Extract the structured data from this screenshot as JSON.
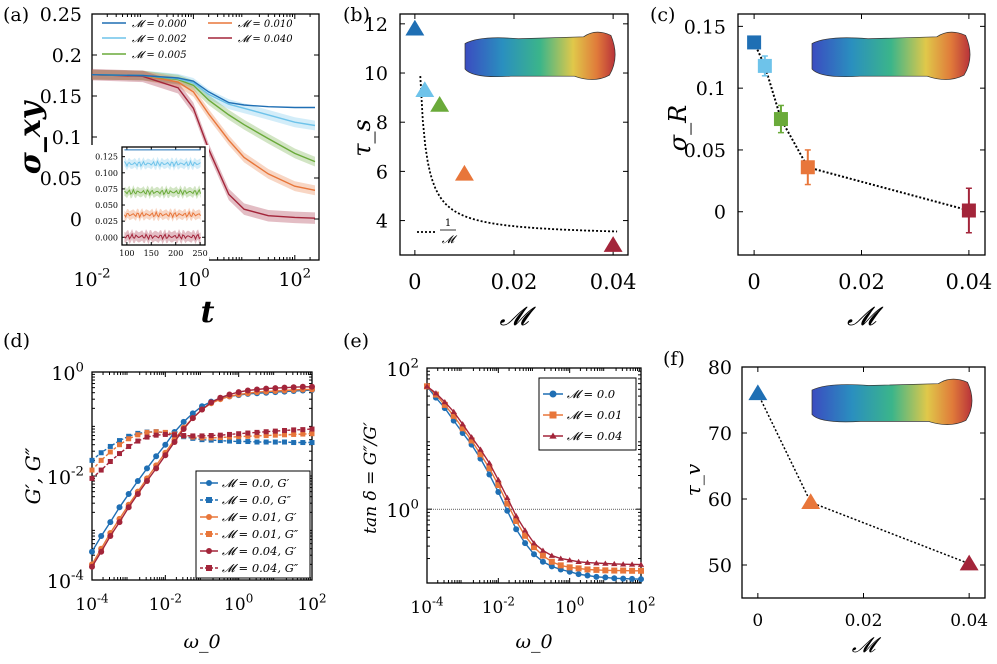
{
  "chart_data": [
    {
      "panel": "(a)",
      "type": "line",
      "xscale": "log",
      "xlim": [
        0.01,
        300
      ],
      "ylim": [
        -0.05,
        0.25
      ],
      "x_ticks": [
        "10^{-2}",
        "10^{0}",
        "10^{2}"
      ],
      "y_ticks": [
        "0.25",
        "0.2",
        "0.15",
        "0.1",
        "0.05",
        "0"
      ],
      "xlabel": "t",
      "ylabel": "σ_xy",
      "legend_position": "top",
      "series": [
        {
          "name": "𝓜 = 0.000",
          "color": "#1f6fb4",
          "x": [
            0.01,
            0.1,
            0.5,
            1,
            2,
            5,
            10,
            30,
            100,
            250
          ],
          "y": [
            0.176,
            0.175,
            0.172,
            0.168,
            0.155,
            0.142,
            0.139,
            0.137,
            0.136,
            0.136
          ]
        },
        {
          "name": "𝓜 = 0.002",
          "color": "#6ec3ea",
          "x": [
            0.01,
            0.1,
            0.5,
            1,
            2,
            5,
            10,
            30,
            100,
            250
          ],
          "y": [
            0.176,
            0.175,
            0.171,
            0.166,
            0.152,
            0.14,
            0.135,
            0.127,
            0.118,
            0.114
          ]
        },
        {
          "name": "𝓜 = 0.005",
          "color": "#6aaa3a",
          "x": [
            0.01,
            0.1,
            0.5,
            1,
            2,
            5,
            10,
            30,
            100,
            250
          ],
          "y": [
            0.176,
            0.175,
            0.17,
            0.163,
            0.145,
            0.127,
            0.115,
            0.098,
            0.08,
            0.07
          ]
        },
        {
          "name": "𝓜 = 0.010",
          "color": "#e8763a",
          "x": [
            0.01,
            0.1,
            0.5,
            1,
            2,
            5,
            10,
            30,
            100,
            250
          ],
          "y": [
            0.176,
            0.175,
            0.167,
            0.155,
            0.128,
            0.096,
            0.075,
            0.055,
            0.04,
            0.035
          ]
        },
        {
          "name": "𝓜 = 0.040",
          "color": "#a3253a",
          "x": [
            0.01,
            0.1,
            0.5,
            1,
            2,
            5,
            10,
            30,
            100,
            250
          ],
          "y": [
            0.176,
            0.174,
            0.16,
            0.135,
            0.085,
            0.03,
            0.012,
            0.004,
            0.002,
            0.001
          ]
        }
      ],
      "inset": {
        "x_ticks": [
          "100",
          "150",
          "200",
          "250"
        ],
        "y_ticks": [
          "0.125",
          "0.100",
          "0.075",
          "0.050",
          "0.025",
          "0.000"
        ],
        "xlim": [
          90,
          260
        ],
        "ylim": [
          -0.012,
          0.14
        ]
      }
    },
    {
      "panel": "(b)",
      "type": "scatter",
      "xlabel": "𝓜",
      "ylabel": "τ_s",
      "xlim": [
        -0.003,
        0.043
      ],
      "ylim": [
        2.6,
        12.4
      ],
      "x_ticks": [
        "0",
        "0.02",
        "0.04"
      ],
      "y_ticks": [
        "4",
        "6",
        "8",
        "10",
        "12"
      ],
      "fit_label_num": "1",
      "fit_label_den": "𝓜",
      "points": [
        {
          "x": 0.0,
          "y": 11.8,
          "color": "#1f6fb4"
        },
        {
          "x": 0.002,
          "y": 9.3,
          "color": "#6ec3ea"
        },
        {
          "x": 0.005,
          "y": 8.7,
          "color": "#6aaa3a"
        },
        {
          "x": 0.01,
          "y": 5.9,
          "color": "#e8763a"
        },
        {
          "x": 0.04,
          "y": 3.0,
          "color": "#a3253a"
        }
      ]
    },
    {
      "panel": "(c)",
      "type": "scatter",
      "xlabel": "𝓜",
      "ylabel": "σ_R",
      "xlim": [
        -0.003,
        0.043
      ],
      "ylim": [
        -0.035,
        0.16
      ],
      "x_ticks": [
        "0",
        "0.02",
        "0.04"
      ],
      "y_ticks": [
        "0",
        "0.05",
        "0.1",
        "0.15"
      ],
      "points": [
        {
          "x": 0.0,
          "y": 0.137,
          "err": 0.004,
          "color": "#1f6fb4"
        },
        {
          "x": 0.002,
          "y": 0.118,
          "err": 0.008,
          "color": "#6ec3ea"
        },
        {
          "x": 0.005,
          "y": 0.075,
          "err": 0.011,
          "color": "#6aaa3a"
        },
        {
          "x": 0.01,
          "y": 0.036,
          "err": 0.014,
          "color": "#e8763a"
        },
        {
          "x": 0.04,
          "y": 0.001,
          "err": 0.018,
          "color": "#a3253a"
        }
      ]
    },
    {
      "panel": "(d)",
      "type": "line",
      "xscale": "log",
      "yscale": "log",
      "xlabel": "ω_0",
      "ylabel": "G′, G″",
      "xlim": [
        0.0001,
        100
      ],
      "ylim": [
        0.0001,
        1
      ],
      "x_ticks": [
        "10^{-4}",
        "10^{-2}",
        "10^{0}",
        "10^{2}"
      ],
      "y_ticks": [
        "10^{0}",
        "10^{-2}",
        "10^{-4}"
      ],
      "legend_position": "bottom-right",
      "x": [
        0.0001,
        0.000178,
        0.000316,
        0.000562,
        0.001,
        0.00178,
        0.00316,
        0.00562,
        0.01,
        0.0178,
        0.0316,
        0.0562,
        0.1,
        0.178,
        0.316,
        0.562,
        1,
        1.78,
        3.16,
        5.62,
        10,
        17.8,
        31.6,
        56.2,
        100
      ],
      "series": [
        {
          "name": "𝓜 = 0.0, G′",
          "color": "#1f6fb4",
          "marker": "circle",
          "dash": false,
          "y": [
            0.00035,
            0.0007,
            0.0013,
            0.0025,
            0.0045,
            0.008,
            0.014,
            0.024,
            0.04,
            0.07,
            0.11,
            0.16,
            0.22,
            0.27,
            0.31,
            0.34,
            0.36,
            0.38,
            0.39,
            0.4,
            0.41,
            0.42,
            0.43,
            0.44,
            0.45
          ]
        },
        {
          "name": "𝓜 = 0.0, G″",
          "color": "#1f6fb4",
          "marker": "square",
          "dash": true,
          "y": [
            0.02,
            0.028,
            0.037,
            0.048,
            0.058,
            0.066,
            0.07,
            0.071,
            0.068,
            0.062,
            0.057,
            0.053,
            0.05,
            0.049,
            0.048,
            0.047,
            0.046,
            0.046,
            0.045,
            0.045,
            0.045,
            0.045,
            0.044,
            0.044,
            0.044
          ]
        },
        {
          "name": "𝓜 = 0.01, G′",
          "color": "#e8763a",
          "marker": "circle",
          "dash": false,
          "y": [
            0.0002,
            0.0004,
            0.0008,
            0.0015,
            0.0028,
            0.005,
            0.009,
            0.016,
            0.028,
            0.05,
            0.085,
            0.13,
            0.19,
            0.25,
            0.3,
            0.34,
            0.37,
            0.39,
            0.41,
            0.42,
            0.43,
            0.44,
            0.45,
            0.46,
            0.46
          ]
        },
        {
          "name": "𝓜 = 0.01, G″",
          "color": "#e8763a",
          "marker": "square",
          "dash": true,
          "y": [
            0.013,
            0.02,
            0.029,
            0.04,
            0.052,
            0.062,
            0.069,
            0.071,
            0.069,
            0.064,
            0.059,
            0.056,
            0.054,
            0.054,
            0.055,
            0.056,
            0.057,
            0.058,
            0.059,
            0.06,
            0.061,
            0.062,
            0.063,
            0.064,
            0.065
          ]
        },
        {
          "name": "𝓜 = 0.04, G′",
          "color": "#a3253a",
          "marker": "circle",
          "dash": false,
          "y": [
            0.00018,
            0.00035,
            0.0007,
            0.0013,
            0.0025,
            0.0045,
            0.008,
            0.014,
            0.025,
            0.045,
            0.08,
            0.13,
            0.19,
            0.26,
            0.32,
            0.37,
            0.41,
            0.44,
            0.46,
            0.48,
            0.49,
            0.5,
            0.51,
            0.52,
            0.52
          ]
        },
        {
          "name": "𝓜 = 0.04, G″",
          "color": "#a3253a",
          "marker": "square",
          "dash": true,
          "y": [
            0.009,
            0.013,
            0.019,
            0.027,
            0.037,
            0.047,
            0.056,
            0.061,
            0.063,
            0.062,
            0.06,
            0.059,
            0.059,
            0.06,
            0.061,
            0.063,
            0.065,
            0.067,
            0.069,
            0.071,
            0.073,
            0.075,
            0.077,
            0.078,
            0.08
          ]
        }
      ]
    },
    {
      "panel": "(e)",
      "type": "line",
      "xscale": "log",
      "yscale": "log",
      "xlabel": "ω_0",
      "ylabel": "tan δ = G″/G′",
      "xlim": [
        0.0001,
        100
      ],
      "ylim": [
        0.09,
        100
      ],
      "x_ticks": [
        "10^{-4}",
        "10^{-2}",
        "10^{0}",
        "10^{2}"
      ],
      "y_ticks": [
        "10^{2}",
        "10^{0}"
      ],
      "reference_line": 1,
      "legend_position": "top-right",
      "x": [
        0.0001,
        0.000178,
        0.000316,
        0.000562,
        0.001,
        0.00178,
        0.00316,
        0.00562,
        0.01,
        0.0178,
        0.0316,
        0.0562,
        0.1,
        0.178,
        0.316,
        0.562,
        1,
        1.78,
        3.16,
        5.62,
        10,
        17.8,
        31.6,
        56.2,
        100
      ],
      "series": [
        {
          "name": "𝓜 = 0.0",
          "color": "#1f6fb4",
          "marker": "circle",
          "y": [
            55,
            38,
            27,
            18,
            12,
            8.2,
            5.2,
            3.1,
            1.75,
            0.95,
            0.52,
            0.33,
            0.23,
            0.18,
            0.155,
            0.14,
            0.13,
            0.12,
            0.115,
            0.11,
            0.108,
            0.105,
            0.104,
            0.103,
            0.102
          ]
        },
        {
          "name": "𝓜 = 0.01",
          "color": "#e8763a",
          "marker": "square",
          "y": [
            55,
            42,
            30,
            21,
            14,
            9.4,
            6,
            3.8,
            2.2,
            1.2,
            0.68,
            0.42,
            0.29,
            0.22,
            0.18,
            0.16,
            0.15,
            0.145,
            0.14,
            0.138,
            0.136,
            0.135,
            0.135,
            0.134,
            0.134
          ]
        },
        {
          "name": "𝓜 = 0.04",
          "color": "#a3253a",
          "marker": "triangle",
          "y": [
            55,
            44,
            33,
            24,
            16,
            10.5,
            7,
            4.5,
            2.6,
            1.45,
            0.8,
            0.5,
            0.33,
            0.26,
            0.22,
            0.2,
            0.19,
            0.18,
            0.175,
            0.172,
            0.17,
            0.168,
            0.166,
            0.165,
            0.164
          ]
        }
      ]
    },
    {
      "panel": "(f)",
      "type": "scatter",
      "xlabel": "𝓜",
      "ylabel": "τ_v",
      "xlim": [
        -0.003,
        0.043
      ],
      "ylim": [
        45,
        80
      ],
      "x_ticks": [
        "0",
        "0.02",
        "0.04"
      ],
      "y_ticks": [
        "80",
        "70",
        "60",
        "50"
      ],
      "points": [
        {
          "x": 0.0,
          "y": 76,
          "color": "#1f6fb4"
        },
        {
          "x": 0.01,
          "y": 59.5,
          "color": "#e8763a"
        },
        {
          "x": 0.04,
          "y": 50.2,
          "color": "#a3253a"
        }
      ]
    }
  ]
}
